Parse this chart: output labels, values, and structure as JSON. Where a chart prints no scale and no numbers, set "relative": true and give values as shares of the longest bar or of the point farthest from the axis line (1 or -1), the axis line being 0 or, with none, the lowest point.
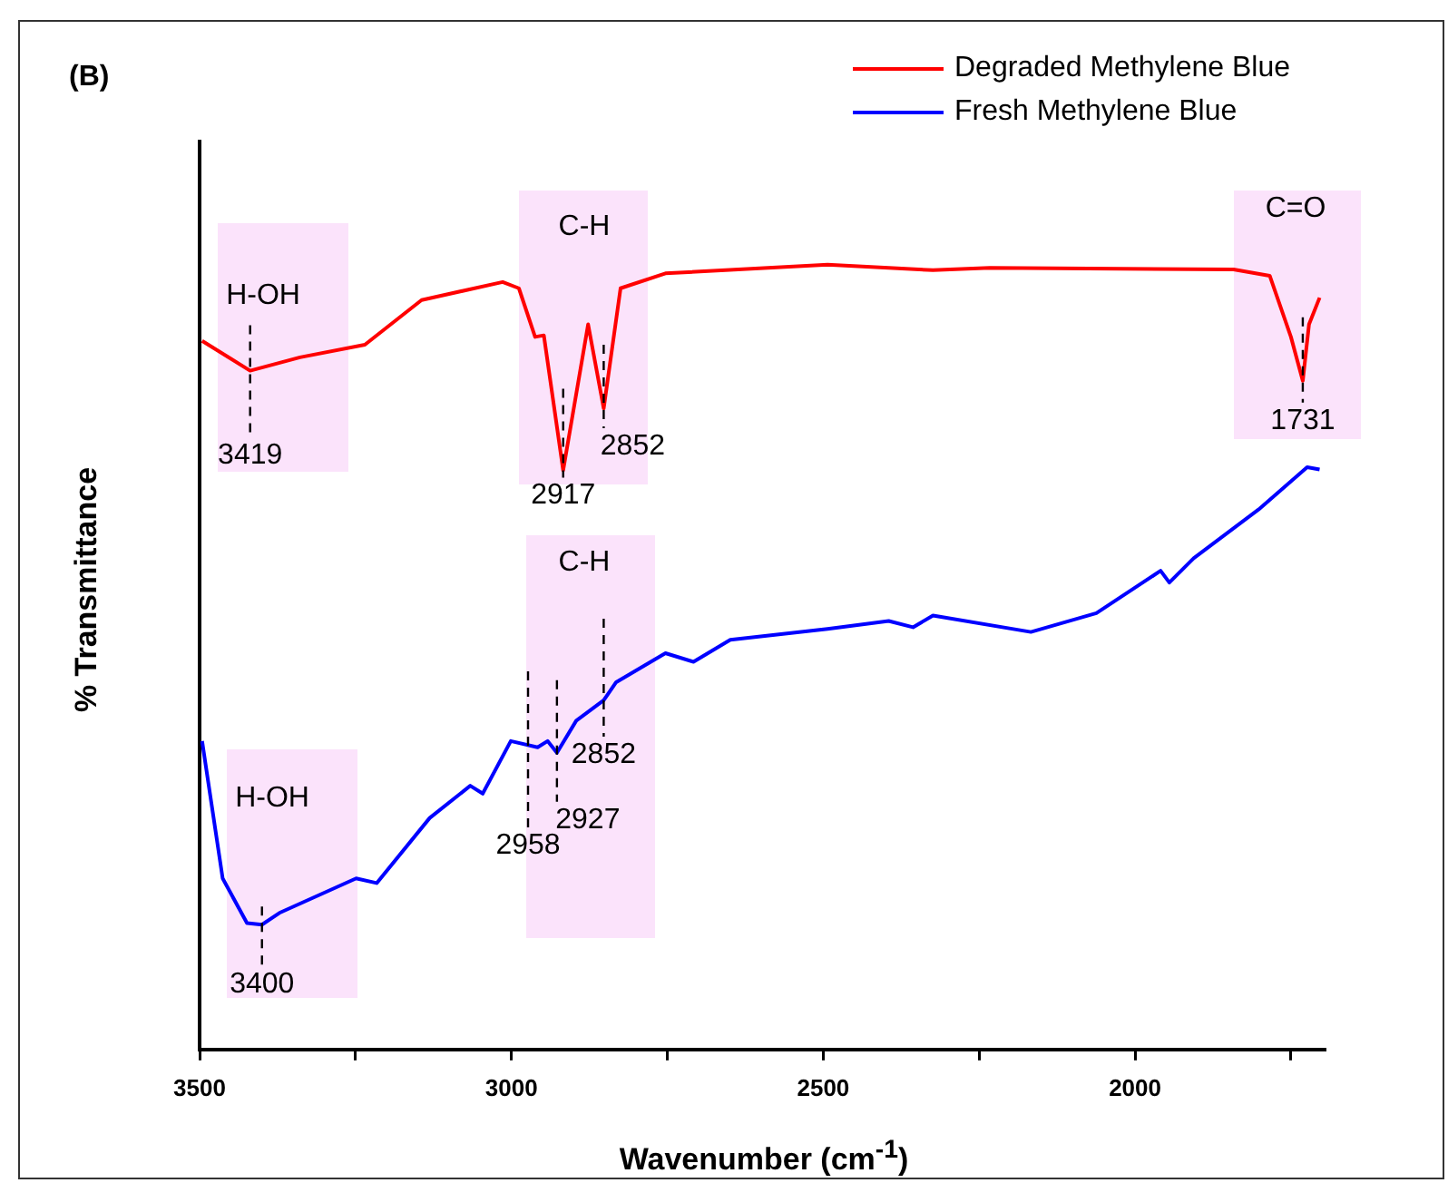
{
  "chart_data": {
    "type": "line",
    "title": "(B)",
    "xlabel": "Wavenumber (cm$^{-1}$)",
    "ylabel": "% Transmittance",
    "relative": true,
    "legend": "top right",
    "tick_labels": "x",
    "grid": false,
    "marker": "none",
    "line_style": "solid",
    "xlim": [
      3500,
      1696
    ],
    "xticks": [
      3500,
      {
        "value": 3250,
        "label": null
      },
      3000,
      {
        "value": 2750,
        "label": null
      },
      2500,
      {
        "value": 2250,
        "label": null
      },
      2000,
      {
        "value": 1750,
        "label": null
      }
    ],
    "series": [
      {
        "name": "Degraded Methylene Blue",
        "color": "#ff0000",
        "x": [
          3496,
          3419,
          3339,
          3235,
          3144,
          3014,
          2988,
          2962,
          2948,
          2917,
          2877,
          2852,
          2825,
          2753,
          2493,
          2324,
          2233,
          1842,
          1784,
          1750,
          1731,
          1721,
          1704
        ],
        "values": [
          0.903,
          0.865,
          0.882,
          0.898,
          0.955,
          0.978,
          0.97,
          0.908,
          0.91,
          0.738,
          0.924,
          0.817,
          0.97,
          0.989,
          1,
          0.993,
          0.996,
          0.994,
          0.986,
          0.908,
          0.852,
          0.924,
          0.958
        ]
      },
      {
        "name": "Fresh Methylene Blue",
        "color": "#0000ff",
        "x": [
          3496,
          3463,
          3424,
          3400,
          3372,
          3249,
          3216,
          3131,
          3066,
          3046,
          3001,
          2958,
          2942,
          2927,
          2896,
          2852,
          2832,
          2753,
          2708,
          2649,
          2493,
          2395,
          2356,
          2324,
          2167,
          2062,
          1959,
          1945,
          1906,
          1802,
          1724,
          1704
        ],
        "values": [
          0.393,
          0.218,
          0.161,
          0.159,
          0.174,
          0.218,
          0.212,
          0.295,
          0.336,
          0.326,
          0.393,
          0.385,
          0.393,
          0.378,
          0.419,
          0.445,
          0.468,
          0.505,
          0.494,
          0.522,
          0.536,
          0.546,
          0.538,
          0.553,
          0.532,
          0.556,
          0.61,
          0.595,
          0.626,
          0.688,
          0.742,
          0.739
        ]
      }
    ],
    "annotations": [
      "H-OH",
      {
        "text": "3419",
        "x": 3419,
        "y": 0.865
      },
      "C-H",
      {
        "text": "2917",
        "x": 2917,
        "y": 0.738
      },
      {
        "text": "2852",
        "x": 2852,
        "y": 0.817
      },
      "C=O",
      {
        "text": "1731",
        "x": 1731,
        "y": 0.852
      },
      "C-H",
      {
        "text": "2852",
        "x": 2852,
        "y": 0.445
      },
      {
        "text": "2927",
        "x": 2927,
        "y": 0.378
      },
      "2958",
      "H-OH",
      {
        "text": "3400",
        "x": 3400,
        "y": 0.159
      }
    ]
  }
}
